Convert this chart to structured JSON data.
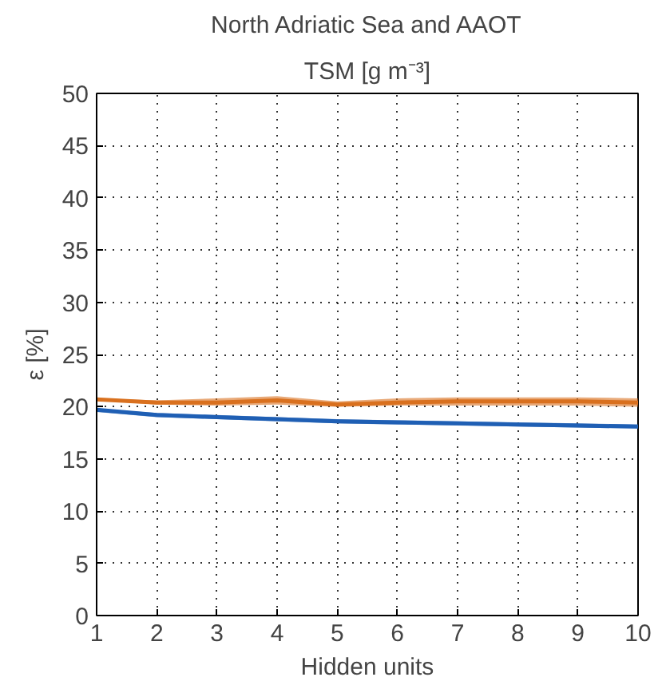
{
  "chart_data": {
    "type": "line",
    "title": "North Adriatic Sea and AAOT",
    "subtitle": "TSM [g m⁻³]",
    "xlabel": "Hidden units",
    "ylabel": "ε [%]",
    "x": [
      1,
      2,
      3,
      4,
      5,
      6,
      7,
      8,
      9,
      10
    ],
    "series": [
      {
        "color": "#d9701e",
        "values": [
          20.7,
          20.4,
          20.4,
          20.6,
          20.2,
          20.4,
          20.5,
          20.5,
          20.5,
          20.4
        ],
        "lower": [
          20.6,
          20.2,
          20.1,
          20.2,
          20.0,
          20.1,
          20.1,
          20.1,
          20.1,
          20.0
        ],
        "upper": [
          20.8,
          20.6,
          20.8,
          21.0,
          20.5,
          20.8,
          20.9,
          20.9,
          20.9,
          20.8
        ]
      },
      {
        "color": "#1f5fb4",
        "values": [
          19.7,
          19.2,
          19.0,
          18.8,
          18.6,
          18.5,
          18.4,
          18.3,
          18.2,
          18.1
        ],
        "lower": [
          19.5,
          19.0,
          18.8,
          18.6,
          18.4,
          18.3,
          18.2,
          18.1,
          18.0,
          17.9
        ],
        "upper": [
          19.8,
          19.4,
          19.2,
          19.0,
          18.8,
          18.7,
          18.6,
          18.5,
          18.4,
          18.3
        ]
      }
    ],
    "xlim": [
      1,
      10
    ],
    "ylim": [
      0,
      50
    ],
    "xticks": [
      1,
      2,
      3,
      4,
      5,
      6,
      7,
      8,
      9,
      10
    ],
    "yticks": [
      0,
      5,
      10,
      15,
      20,
      25,
      30,
      35,
      40,
      45,
      50
    ],
    "grid": true,
    "line_style": "solid"
  }
}
